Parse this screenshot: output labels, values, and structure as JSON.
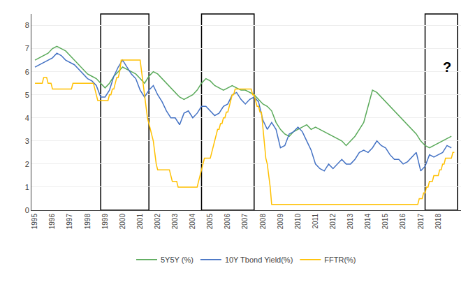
{
  "chart_data": {
    "type": "line",
    "xlim": [
      1994.8,
      2019.3
    ],
    "xticks": [
      1995,
      1996,
      1997,
      1998,
      1999,
      2000,
      2001,
      2002,
      2003,
      2004,
      2005,
      2006,
      2007,
      2008,
      2009,
      2010,
      2011,
      2012,
      2013,
      2014,
      2015,
      2016,
      2017,
      2018
    ],
    "ylim": [
      0,
      8.5
    ],
    "yticks": [
      0,
      1,
      2,
      3,
      4,
      5,
      6,
      7,
      8
    ],
    "grid": "y",
    "legend": "bottom",
    "spans": [
      [
        1998.75,
        2001.5
      ],
      [
        2004.5,
        2007.5
      ],
      [
        2017.25,
        2019.1
      ]
    ],
    "annotations": [
      {
        "text": "?",
        "x": 2018.5,
        "y": 6.2
      }
    ],
    "series": [
      {
        "name": "5Y5Y (%)",
        "color": "#5aaa5a",
        "x": [
          1995.0,
          1995.25,
          1995.5,
          1995.75,
          1996.0,
          1996.25,
          1996.5,
          1996.75,
          1997.0,
          1997.25,
          1997.5,
          1997.75,
          1998.0,
          1998.25,
          1998.5,
          1998.75,
          1999.0,
          1999.25,
          1999.5,
          1999.75,
          2000.0,
          2000.25,
          2000.5,
          2000.75,
          2001.0,
          2001.25,
          2001.5,
          2001.75,
          2002.0,
          2002.25,
          2002.5,
          2002.75,
          2003.0,
          2003.25,
          2003.5,
          2003.75,
          2004.0,
          2004.25,
          2004.5,
          2004.75,
          2005.0,
          2005.25,
          2005.5,
          2005.75,
          2006.0,
          2006.25,
          2006.5,
          2006.75,
          2007.0,
          2007.25,
          2007.5,
          2007.75,
          2008.0,
          2008.25,
          2008.5,
          2008.75,
          2009.0,
          2009.25,
          2009.5,
          2009.75,
          2010.0,
          2010.25,
          2010.5,
          2010.75,
          2011.0,
          2011.25,
          2011.5,
          2011.75,
          2012.0,
          2012.25,
          2012.5,
          2012.75,
          2013.0,
          2013.25,
          2013.5,
          2013.75,
          2014.0,
          2014.25,
          2014.5,
          2014.75,
          2015.0,
          2015.25,
          2015.5,
          2015.75,
          2016.0,
          2016.25,
          2016.5,
          2016.75,
          2017.0,
          2017.25,
          2017.5,
          2017.75,
          2018.0,
          2018.25,
          2018.5,
          2018.75
        ],
        "values": [
          6.5,
          6.6,
          6.7,
          6.8,
          7.0,
          7.1,
          7.0,
          6.9,
          6.7,
          6.5,
          6.3,
          6.1,
          5.9,
          5.8,
          5.7,
          5.5,
          5.3,
          5.5,
          5.8,
          6.0,
          6.2,
          6.1,
          6.0,
          5.9,
          5.7,
          5.5,
          5.8,
          6.0,
          5.9,
          5.7,
          5.5,
          5.3,
          5.1,
          4.9,
          4.8,
          4.9,
          5.0,
          5.2,
          5.5,
          5.7,
          5.6,
          5.4,
          5.3,
          5.2,
          5.3,
          5.4,
          5.3,
          5.2,
          5.2,
          5.1,
          5.0,
          4.8,
          4.6,
          4.5,
          4.3,
          3.8,
          3.5,
          3.3,
          3.2,
          3.4,
          3.5,
          3.6,
          3.7,
          3.5,
          3.6,
          3.5,
          3.4,
          3.3,
          3.2,
          3.1,
          3.0,
          2.8,
          3.0,
          3.2,
          3.5,
          3.8,
          4.5,
          5.2,
          5.1,
          4.9,
          4.7,
          4.5,
          4.3,
          4.1,
          3.9,
          3.7,
          3.5,
          3.3,
          3.0,
          2.8,
          2.7,
          2.8,
          2.9,
          3.0,
          3.1,
          3.2
        ]
      },
      {
        "name": "10Y Tbond Yield(%)",
        "color": "#4472c4",
        "x": [
          1995.0,
          1995.25,
          1995.5,
          1995.75,
          1996.0,
          1996.25,
          1996.5,
          1996.75,
          1997.0,
          1997.25,
          1997.5,
          1997.75,
          1998.0,
          1998.25,
          1998.5,
          1998.75,
          1999.0,
          1999.25,
          1999.5,
          1999.75,
          2000.0,
          2000.25,
          2000.5,
          2000.75,
          2001.0,
          2001.25,
          2001.5,
          2001.75,
          2002.0,
          2002.25,
          2002.5,
          2002.75,
          2003.0,
          2003.25,
          2003.5,
          2003.75,
          2004.0,
          2004.25,
          2004.5,
          2004.75,
          2005.0,
          2005.25,
          2005.5,
          2005.75,
          2006.0,
          2006.25,
          2006.5,
          2006.75,
          2007.0,
          2007.25,
          2007.5,
          2007.75,
          2008.0,
          2008.25,
          2008.5,
          2008.75,
          2009.0,
          2009.25,
          2009.5,
          2009.75,
          2010.0,
          2010.25,
          2010.5,
          2010.75,
          2011.0,
          2011.25,
          2011.5,
          2011.75,
          2012.0,
          2012.25,
          2012.5,
          2012.75,
          2013.0,
          2013.25,
          2013.5,
          2013.75,
          2014.0,
          2014.25,
          2014.5,
          2014.75,
          2015.0,
          2015.25,
          2015.5,
          2015.75,
          2016.0,
          2016.25,
          2016.5,
          2016.75,
          2017.0,
          2017.25,
          2017.5,
          2017.75,
          2018.0,
          2018.25,
          2018.5,
          2018.75
        ],
        "values": [
          6.2,
          6.3,
          6.4,
          6.5,
          6.6,
          6.8,
          6.7,
          6.5,
          6.4,
          6.3,
          6.1,
          5.9,
          5.7,
          5.6,
          5.4,
          4.9,
          4.9,
          5.2,
          5.8,
          6.2,
          6.5,
          6.2,
          5.9,
          5.7,
          5.2,
          4.9,
          5.2,
          5.4,
          5.0,
          4.7,
          4.3,
          4.0,
          4.0,
          3.7,
          4.2,
          4.3,
          4.0,
          4.2,
          4.5,
          4.5,
          4.3,
          4.1,
          4.2,
          4.5,
          4.6,
          5.0,
          5.1,
          4.8,
          4.6,
          4.8,
          4.9,
          4.7,
          3.9,
          3.5,
          3.8,
          3.5,
          2.7,
          2.8,
          3.3,
          3.4,
          3.6,
          3.4,
          3.0,
          2.6,
          2.0,
          1.8,
          1.7,
          2.0,
          1.8,
          2.0,
          2.2,
          2.0,
          2.0,
          2.2,
          2.5,
          2.6,
          2.5,
          2.7,
          3.0,
          2.8,
          2.7,
          2.4,
          2.2,
          2.2,
          2.0,
          2.1,
          2.3,
          2.5,
          1.7,
          1.9,
          2.4,
          2.3,
          2.4,
          2.5,
          2.8,
          2.7
        ]
      },
      {
        "name": "FFTR(%)",
        "color": "#ffc000",
        "x": [
          1995.0,
          1995.083,
          1995.167,
          1995.25,
          1995.333,
          1995.417,
          1995.5,
          1995.583,
          1995.667,
          1995.75,
          1995.833,
          1995.917,
          1996.0,
          1996.083,
          1996.167,
          1996.25,
          1996.333,
          1996.417,
          1996.5,
          1996.583,
          1996.667,
          1996.75,
          1996.833,
          1996.917,
          1997.0,
          1997.083,
          1997.167,
          1997.25,
          1997.333,
          1997.417,
          1997.5,
          1997.583,
          1997.667,
          1997.75,
          1997.833,
          1997.917,
          1998.0,
          1998.083,
          1998.167,
          1998.25,
          1998.333,
          1998.417,
          1998.5,
          1998.583,
          1998.667,
          1998.75,
          1998.833,
          1998.917,
          1999.0,
          1999.083,
          1999.167,
          1999.25,
          1999.333,
          1999.417,
          1999.5,
          1999.583,
          1999.667,
          1999.75,
          1999.833,
          1999.917,
          2000.0,
          2000.083,
          2000.167,
          2000.25,
          2000.333,
          2000.417,
          2000.5,
          2000.583,
          2000.667,
          2000.75,
          2000.833,
          2000.917,
          2001.0,
          2001.083,
          2001.167,
          2001.25,
          2001.333,
          2001.417,
          2001.5,
          2001.583,
          2001.667,
          2001.75,
          2001.833,
          2001.917,
          2002.0,
          2002.083,
          2002.167,
          2002.25,
          2002.333,
          2002.417,
          2002.5,
          2002.583,
          2002.667,
          2002.75,
          2002.833,
          2002.917,
          2003.0,
          2003.083,
          2003.167,
          2003.25,
          2003.333,
          2003.417,
          2003.5,
          2003.583,
          2003.667,
          2003.75,
          2003.833,
          2003.917,
          2004.0,
          2004.083,
          2004.167,
          2004.25,
          2004.333,
          2004.417,
          2004.5,
          2004.583,
          2004.667,
          2004.75,
          2004.833,
          2004.917,
          2005.0,
          2005.083,
          2005.167,
          2005.25,
          2005.333,
          2005.417,
          2005.5,
          2005.583,
          2005.667,
          2005.75,
          2005.833,
          2005.917,
          2006.0,
          2006.083,
          2006.167,
          2006.25,
          2006.333,
          2006.417,
          2006.5,
          2006.583,
          2006.667,
          2006.75,
          2006.833,
          2006.917,
          2007.0,
          2007.083,
          2007.167,
          2007.25,
          2007.333,
          2007.417,
          2007.5,
          2007.583,
          2007.667,
          2007.75,
          2007.833,
          2007.917,
          2008.0,
          2008.083,
          2008.167,
          2008.25,
          2008.333,
          2008.417,
          2008.5,
          2008.583,
          2008.667,
          2008.75,
          2008.833,
          2008.917,
          2009.0,
          2009.083,
          2009.167,
          2009.25,
          2009.333,
          2009.417,
          2009.5,
          2009.583,
          2009.667,
          2009.75,
          2009.833,
          2009.917,
          2010.0,
          2010.083,
          2010.167,
          2010.25,
          2010.333,
          2010.417,
          2010.5,
          2010.583,
          2010.667,
          2010.75,
          2010.833,
          2010.917,
          2011.0,
          2011.083,
          2011.167,
          2011.25,
          2011.333,
          2011.417,
          2011.5,
          2011.583,
          2011.667,
          2011.75,
          2011.833,
          2011.917,
          2012.0,
          2012.083,
          2012.167,
          2012.25,
          2012.333,
          2012.417,
          2012.5,
          2012.583,
          2012.667,
          2012.75,
          2012.833,
          2012.917,
          2013.0,
          2013.083,
          2013.167,
          2013.25,
          2013.333,
          2013.417,
          2013.5,
          2013.583,
          2013.667,
          2013.75,
          2013.833,
          2013.917,
          2014.0,
          2014.083,
          2014.167,
          2014.25,
          2014.333,
          2014.417,
          2014.5,
          2014.583,
          2014.667,
          2014.75,
          2014.833,
          2014.917,
          2015.0,
          2015.083,
          2015.167,
          2015.25,
          2015.333,
          2015.417,
          2015.5,
          2015.583,
          2015.667,
          2015.75,
          2015.833,
          2015.917,
          2016.0,
          2016.083,
          2016.167,
          2016.25,
          2016.333,
          2016.417,
          2016.5,
          2016.583,
          2016.667,
          2016.75,
          2016.833,
          2016.917,
          2017.0,
          2017.083,
          2017.167,
          2017.25,
          2017.333,
          2017.417,
          2017.5,
          2017.583,
          2017.667,
          2017.75,
          2017.833,
          2017.917,
          2018.0,
          2018.083,
          2018.167,
          2018.25,
          2018.333,
          2018.417,
          2018.5,
          2018.583,
          2018.667,
          2018.75,
          2018.833,
          2018.917
        ],
        "values": [
          5.5,
          5.5,
          5.5,
          5.5,
          5.5,
          5.5,
          5.75,
          5.75,
          5.75,
          5.5,
          5.5,
          5.5,
          5.25,
          5.25,
          5.25,
          5.25,
          5.25,
          5.25,
          5.25,
          5.25,
          5.25,
          5.25,
          5.25,
          5.25,
          5.25,
          5.25,
          5.5,
          5.5,
          5.5,
          5.5,
          5.5,
          5.5,
          5.5,
          5.5,
          5.5,
          5.5,
          5.5,
          5.5,
          5.5,
          5.5,
          5.5,
          5.25,
          5.0,
          4.75,
          4.75,
          4.75,
          4.75,
          4.75,
          4.75,
          4.75,
          4.75,
          5.0,
          5.0,
          5.25,
          5.25,
          5.5,
          5.75,
          5.75,
          6.0,
          6.5,
          6.5,
          6.5,
          6.5,
          6.5,
          6.5,
          6.5,
          6.5,
          6.5,
          6.5,
          6.5,
          6.5,
          6.5,
          6.5,
          6.0,
          5.5,
          5.0,
          4.5,
          4.0,
          3.75,
          3.5,
          3.25,
          3.0,
          2.5,
          2.0,
          1.75,
          1.75,
          1.75,
          1.75,
          1.75,
          1.75,
          1.75,
          1.75,
          1.75,
          1.5,
          1.25,
          1.25,
          1.25,
          1.25,
          1.0,
          1.0,
          1.0,
          1.0,
          1.0,
          1.0,
          1.0,
          1.0,
          1.0,
          1.0,
          1.0,
          1.0,
          1.0,
          1.0,
          1.25,
          1.5,
          1.75,
          2.0,
          2.25,
          2.25,
          2.25,
          2.25,
          2.25,
          2.5,
          2.75,
          3.0,
          3.25,
          3.5,
          3.5,
          3.75,
          3.75,
          4.0,
          4.0,
          4.25,
          4.25,
          4.5,
          4.75,
          5.0,
          5.0,
          5.25,
          5.25,
          5.25,
          5.25,
          5.25,
          5.25,
          5.25,
          5.25,
          5.25,
          5.25,
          5.25,
          5.25,
          5.0,
          5.0,
          4.75,
          4.5,
          4.5,
          4.25,
          4.25,
          3.5,
          3.0,
          2.25,
          2.0,
          1.5,
          1.0,
          0.25,
          0.25,
          0.25,
          0.25,
          0.25,
          0.25,
          0.25,
          0.25,
          0.25,
          0.25,
          0.25,
          0.25,
          0.25,
          0.25,
          0.25,
          0.25,
          0.25,
          0.25,
          0.25,
          0.25,
          0.25,
          0.25,
          0.25,
          0.25,
          0.25,
          0.25,
          0.25,
          0.25,
          0.25,
          0.25,
          0.25,
          0.25,
          0.25,
          0.25,
          0.25,
          0.25,
          0.25,
          0.25,
          0.25,
          0.25,
          0.25,
          0.25,
          0.25,
          0.25,
          0.25,
          0.25,
          0.25,
          0.25,
          0.25,
          0.25,
          0.25,
          0.25,
          0.25,
          0.25,
          0.25,
          0.25,
          0.25,
          0.25,
          0.25,
          0.25,
          0.25,
          0.25,
          0.25,
          0.25,
          0.25,
          0.25,
          0.25,
          0.25,
          0.25,
          0.25,
          0.25,
          0.25,
          0.25,
          0.25,
          0.25,
          0.25,
          0.25,
          0.25,
          0.25,
          0.25,
          0.25,
          0.25,
          0.25,
          0.25,
          0.25,
          0.25,
          0.25,
          0.25,
          0.25,
          0.25,
          0.25,
          0.25,
          0.25,
          0.25,
          0.25,
          0.25,
          0.25,
          0.25,
          0.25,
          0.25,
          0.25,
          0.5,
          0.5,
          0.5,
          0.75,
          0.75,
          1.0,
          1.0,
          1.25,
          1.25,
          1.25,
          1.5,
          1.5,
          1.5,
          1.5,
          1.75,
          1.75,
          2.0,
          2.0,
          2.25,
          2.25,
          2.25,
          2.25,
          2.25,
          2.5,
          2.5
        ]
      }
    ]
  }
}
